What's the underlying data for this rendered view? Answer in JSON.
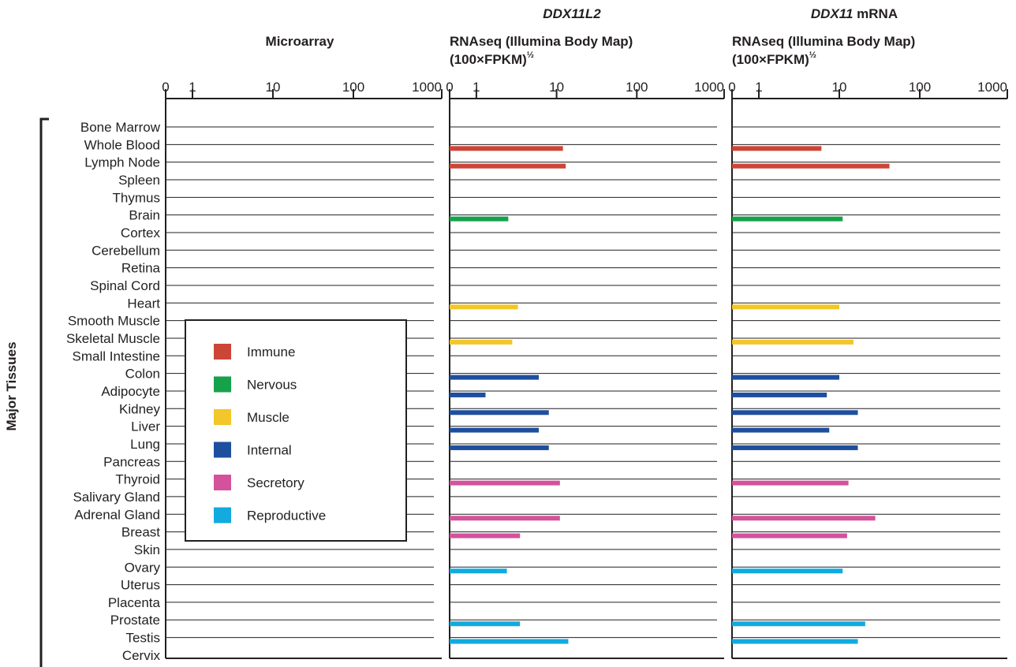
{
  "chart_data": {
    "type": "bar",
    "y_axis_title": "Major Tissues",
    "categories": [
      "Bone Marrow",
      "Whole Blood",
      "Lymph Node",
      "Spleen",
      "Thymus",
      "Brain",
      "Cortex",
      "Cerebellum",
      "Retina",
      "Spinal Cord",
      "Heart",
      "Smooth Muscle",
      "Skeletal Muscle",
      "Small Intestine",
      "Colon",
      "Adipocyte",
      "Kidney",
      "Liver",
      "Lung",
      "Pancreas",
      "Thyroid",
      "Salivary Gland",
      "Adrenal Gland",
      "Breast",
      "Skin",
      "Ovary",
      "Uterus",
      "Placenta",
      "Prostate",
      "Testis",
      "Cervix"
    ],
    "category_groups": [
      "none",
      "Immune",
      "Immune",
      "none",
      "none",
      "Nervous",
      "none",
      "none",
      "none",
      "none",
      "Muscle",
      "none",
      "Muscle",
      "none",
      "Internal",
      "Internal",
      "Internal",
      "Internal",
      "Internal",
      "none",
      "Secretory",
      "none",
      "Secretory",
      "Secretory",
      "none",
      "Reproductive",
      "none",
      "none",
      "Reproductive",
      "Reproductive",
      "none"
    ],
    "legend": [
      {
        "name": "Immune",
        "color": "#cc4536"
      },
      {
        "name": "Nervous",
        "color": "#16a24a"
      },
      {
        "name": "Muscle",
        "color": "#f1c729"
      },
      {
        "name": "Internal",
        "color": "#1d4f9e"
      },
      {
        "name": "Secretory",
        "color": "#d4529b"
      },
      {
        "name": "Reproductive",
        "color": "#12aadf"
      }
    ],
    "panels": [
      {
        "title_top": "",
        "title_top_suffix": "",
        "title": "Microarray",
        "title_sub": "",
        "title_sup": "",
        "ticks": [
          "0",
          "1",
          "10",
          "100",
          "1000"
        ],
        "tick_values": [
          0,
          1,
          10,
          100,
          1000
        ],
        "xlim": [
          0,
          1000
        ],
        "scale": "sqrt-log",
        "values": [
          null,
          null,
          null,
          null,
          null,
          null,
          null,
          null,
          null,
          null,
          null,
          null,
          null,
          null,
          null,
          null,
          null,
          null,
          null,
          null,
          null,
          null,
          null,
          null,
          null,
          null,
          null,
          null,
          null,
          null,
          null
        ]
      },
      {
        "title_top": "DDX11L2",
        "title_top_suffix": "",
        "title": "RNAseq (Illumina Body Map)",
        "title_sub": "(100×FPKM)",
        "title_sup": "½",
        "ticks": [
          "0",
          "1",
          "10",
          "100",
          "1000"
        ],
        "tick_values": [
          0,
          1,
          10,
          100,
          1000
        ],
        "xlim": [
          0,
          1000
        ],
        "scale": "sqrt-log",
        "values": [
          null,
          12,
          13,
          null,
          null,
          2.5,
          null,
          null,
          null,
          null,
          3.3,
          null,
          2.8,
          null,
          6,
          1.3,
          8,
          6,
          8,
          null,
          11,
          null,
          11,
          3.5,
          null,
          2.4,
          null,
          null,
          3.5,
          14,
          null
        ]
      },
      {
        "title_top": "DDX11",
        "title_top_suffix": " mRNA",
        "title": "RNAseq (Illumina Body Map)",
        "title_sub": "(100×FPKM)",
        "title_sup": "½",
        "ticks": [
          "0",
          "1",
          "10",
          "100",
          "1000"
        ],
        "tick_values": [
          0,
          1,
          10,
          100,
          1000
        ],
        "xlim": [
          0,
          1000
        ],
        "scale": "sqrt-log",
        "values": [
          null,
          6,
          42,
          null,
          null,
          11,
          null,
          null,
          null,
          null,
          10,
          null,
          15,
          null,
          10,
          7,
          17,
          7.5,
          17,
          null,
          13,
          null,
          28,
          12.5,
          null,
          11,
          null,
          null,
          21,
          17,
          null
        ]
      }
    ]
  }
}
